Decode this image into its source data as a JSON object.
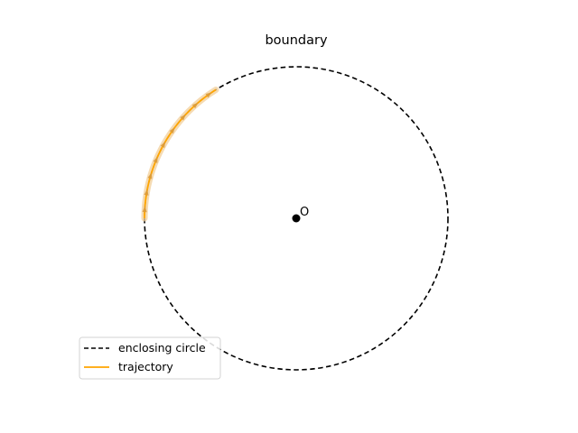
{
  "title": "boundary",
  "center_label": "O",
  "legend": [
    {
      "label": "enclosing circle",
      "style": "dashed",
      "color": "#000000"
    },
    {
      "label": "trajectory",
      "style": "solid",
      "color": "#ffa500"
    }
  ],
  "colors": {
    "circle": "#000000",
    "trajectory": "#ffa500",
    "trajectory_band": "#f2cf9a",
    "arrow": "#d99a3c",
    "center": "#000000"
  },
  "chart_data": {
    "type": "line",
    "title": "boundary",
    "circle": {
      "center": [
        0,
        0
      ],
      "radius": 1
    },
    "trajectory": {
      "start_angle_deg": 180,
      "end_angle_deg": 122,
      "radius": 1,
      "arrows": 9
    },
    "aspect": "equal",
    "axes_visible": false,
    "legend_position": "lower-left"
  }
}
